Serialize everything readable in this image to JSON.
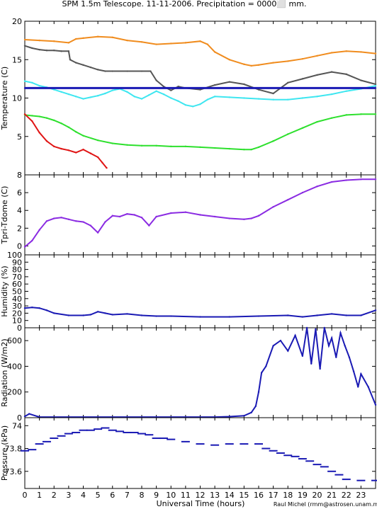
{
  "title": "SPM 1.5m Telescope. 11-11-2006. Precipitation = 0000⬜ mm.",
  "xlabel": "Universal Time (hours)",
  "credit": "Raul Michel (rmm@astrosen.unam.mx)",
  "colors": {
    "orange": "#f08c1e",
    "gray": "#555555",
    "cyan": "#3ee6f0",
    "blue": "#1a1ab4",
    "green": "#2de02d",
    "red": "#e01414",
    "purple": "#8a2be2"
  },
  "chart_data": [
    {
      "type": "line",
      "ylabel": "Temperature (C)",
      "xlim": [
        0,
        24
      ],
      "ylim": [
        0,
        20
      ],
      "xticks": [
        "0",
        "1",
        "2",
        "3",
        "4",
        "5",
        "6",
        "7",
        "8",
        "9",
        "10",
        "11",
        "12",
        "13",
        "14",
        "15",
        "16",
        "17",
        "18",
        "19",
        "20",
        "21",
        "22",
        "23"
      ],
      "yticks": [
        "5",
        "10",
        "15",
        "20"
      ],
      "grid": false,
      "series": [
        {
          "color": "orange",
          "x": [
            0,
            1,
            2,
            3,
            3.5,
            4,
            5,
            6,
            7,
            8,
            9,
            10,
            11,
            12,
            12.5,
            13,
            14,
            15,
            15.5,
            16,
            17,
            18,
            19,
            20,
            21,
            22,
            23,
            24
          ],
          "y": [
            17.6,
            17.5,
            17.4,
            17.2,
            17.7,
            17.8,
            18.0,
            17.9,
            17.5,
            17.3,
            17.0,
            17.1,
            17.2,
            17.4,
            17.0,
            16.0,
            15.0,
            14.4,
            14.2,
            14.3,
            14.6,
            14.8,
            15.1,
            15.5,
            15.9,
            16.1,
            16.0,
            15.8
          ]
        },
        {
          "color": "gray",
          "x": [
            0,
            0.5,
            1,
            1.5,
            2,
            2.5,
            3,
            3.1,
            3.5,
            4,
            4.5,
            5,
            5.5,
            6,
            7,
            8,
            8.6,
            9,
            9.5,
            10,
            10.5,
            11,
            12,
            13,
            14,
            15,
            16,
            17,
            17.5,
            18,
            19,
            20,
            21,
            22,
            23,
            24
          ],
          "y": [
            16.8,
            16.5,
            16.3,
            16.2,
            16.2,
            16.1,
            16.1,
            15.0,
            14.6,
            14.3,
            14.0,
            13.7,
            13.5,
            13.5,
            13.5,
            13.5,
            13.5,
            12.3,
            11.5,
            11.0,
            11.5,
            11.3,
            11.1,
            11.7,
            12.1,
            11.8,
            11.1,
            10.6,
            11.3,
            12.0,
            12.5,
            13.0,
            13.4,
            13.1,
            12.3,
            11.8
          ]
        },
        {
          "color": "cyan",
          "x": [
            0,
            0.5,
            1,
            1.5,
            2,
            2.5,
            3,
            3.5,
            4,
            4.5,
            5,
            5.5,
            6,
            6.5,
            7,
            7.5,
            8,
            8.5,
            9,
            9.5,
            10,
            10.5,
            11,
            11.5,
            12,
            12.5,
            13,
            14,
            15,
            16,
            17,
            18,
            19,
            20,
            21,
            22,
            23,
            24
          ],
          "y": [
            12.2,
            12.0,
            11.6,
            11.4,
            11.1,
            10.8,
            10.5,
            10.2,
            9.9,
            10.1,
            10.3,
            10.6,
            11.0,
            11.2,
            10.8,
            10.2,
            9.9,
            10.4,
            10.9,
            10.5,
            10.0,
            9.6,
            9.1,
            8.9,
            9.2,
            9.8,
            10.2,
            10.1,
            10.0,
            9.9,
            9.8,
            9.8,
            10.0,
            10.2,
            10.5,
            10.9,
            11.2,
            11.6
          ]
        },
        {
          "color": "blue",
          "x": [
            0,
            24
          ],
          "y": [
            11.3,
            11.3
          ]
        },
        {
          "color": "green",
          "x": [
            0,
            0.5,
            1,
            1.5,
            2,
            2.5,
            3,
            3.5,
            4,
            5,
            6,
            7,
            8,
            9,
            10,
            11,
            12,
            13,
            14,
            15,
            15.5,
            16,
            17,
            18,
            19,
            20,
            21,
            22,
            23,
            24
          ],
          "y": [
            7.8,
            7.7,
            7.6,
            7.4,
            7.1,
            6.7,
            6.2,
            5.6,
            5.1,
            4.5,
            4.1,
            3.9,
            3.8,
            3.8,
            3.7,
            3.7,
            3.6,
            3.5,
            3.4,
            3.3,
            3.3,
            3.6,
            4.4,
            5.3,
            6.1,
            6.9,
            7.4,
            7.8,
            7.9,
            7.9
          ]
        },
        {
          "color": "red",
          "x": [
            0,
            0.5,
            1,
            1.5,
            2,
            2.5,
            3,
            3.5,
            4,
            4.5,
            5,
            5.3,
            5.6
          ],
          "y": [
            7.9,
            7.0,
            5.5,
            4.4,
            3.7,
            3.4,
            3.2,
            2.9,
            3.3,
            2.8,
            2.3,
            1.6,
            0.9
          ]
        }
      ]
    },
    {
      "type": "line",
      "ylabel": "Tpri-Tdome (C)",
      "xlim": [
        0,
        24
      ],
      "ylim": [
        -1,
        8
      ],
      "yticks": [
        "0",
        "2",
        "4",
        "6",
        "8"
      ],
      "grid": false,
      "series": [
        {
          "color": "purple",
          "x": [
            0,
            0.5,
            1,
            1.5,
            2,
            2.5,
            3,
            3.5,
            4,
            4.5,
            5,
            5.5,
            6,
            6.5,
            7,
            7.5,
            8,
            8.5,
            9,
            10,
            11,
            12,
            13,
            14,
            15,
            15.5,
            16,
            17,
            18,
            19,
            20,
            21,
            22,
            23,
            24
          ],
          "y": [
            -0.1,
            0.6,
            1.8,
            2.8,
            3.1,
            3.2,
            3.0,
            2.8,
            2.7,
            2.3,
            1.5,
            2.7,
            3.4,
            3.3,
            3.6,
            3.5,
            3.2,
            2.3,
            3.3,
            3.7,
            3.8,
            3.5,
            3.3,
            3.1,
            3.0,
            3.1,
            3.4,
            4.4,
            5.2,
            6.0,
            6.7,
            7.2,
            7.4,
            7.5,
            7.5
          ]
        }
      ]
    },
    {
      "type": "line",
      "ylabel": "Humidity (%)",
      "xlim": [
        0,
        24
      ],
      "ylim": [
        0,
        100
      ],
      "yticks": [
        "0",
        "10",
        "20",
        "30",
        "40",
        "50",
        "60",
        "70",
        "80",
        "90",
        "100"
      ],
      "grid": false,
      "series": [
        {
          "color": "blue",
          "x": [
            0,
            0.5,
            1,
            1.5,
            2,
            3,
            4,
            4.5,
            5,
            5.5,
            6,
            7,
            8,
            9,
            10,
            12,
            14,
            16,
            18,
            19,
            20,
            21,
            22,
            23,
            24
          ],
          "y": [
            27,
            28,
            27,
            24,
            20,
            17,
            17,
            18,
            22,
            20,
            18,
            19,
            17,
            16,
            16,
            15,
            15,
            16,
            17,
            15,
            17,
            19,
            17,
            17,
            24
          ]
        }
      ]
    },
    {
      "type": "line",
      "ylabel": "Radiation (W/m2)",
      "xlim": [
        0,
        24
      ],
      "ylim": [
        0,
        700
      ],
      "yticks": [
        "0",
        "200",
        "400",
        "600"
      ],
      "grid": false,
      "series": [
        {
          "color": "blue",
          "x": [
            0,
            0.3,
            1,
            3,
            5,
            7,
            9,
            11,
            13,
            14,
            15,
            15.5,
            15.8,
            16,
            16.2,
            16.5,
            17,
            17.5,
            18,
            18.5,
            19,
            19.3,
            19.6,
            19.9,
            20.2,
            20.5,
            20.8,
            21,
            21.3,
            21.6,
            21.9,
            22.2,
            22.5,
            22.8,
            23,
            23.5,
            24
          ],
          "y": [
            10,
            30,
            5,
            5,
            5,
            5,
            5,
            5,
            5,
            8,
            15,
            40,
            90,
            200,
            350,
            400,
            560,
            600,
            520,
            640,
            480,
            700,
            420,
            690,
            380,
            700,
            560,
            620,
            470,
            660,
            560,
            470,
            360,
            240,
            340,
            240,
            100
          ]
        }
      ]
    },
    {
      "type": "scatter",
      "ylabel": "Pressure (kPa)",
      "xlim": [
        0,
        24
      ],
      "ylim": [
        73.45,
        74.07
      ],
      "yticks": [
        "73.6",
        "73.8",
        "74"
      ],
      "grid": false,
      "series": [
        {
          "color": "blue",
          "x": [
            0,
            0.5,
            1,
            1.5,
            2,
            2.5,
            3,
            3.5,
            4,
            4.5,
            5,
            5.5,
            6,
            6.5,
            7,
            7.5,
            8,
            8.5,
            9,
            9.5,
            10,
            11,
            12,
            13,
            14,
            15,
            16,
            16.5,
            17,
            17.5,
            18,
            18.5,
            19,
            19.5,
            20,
            20.5,
            21,
            21.5,
            22,
            23,
            24
          ],
          "y": [
            73.78,
            73.79,
            73.84,
            73.86,
            73.89,
            73.91,
            73.93,
            73.94,
            73.96,
            73.96,
            73.97,
            73.98,
            73.96,
            73.95,
            73.94,
            73.94,
            73.93,
            73.92,
            73.89,
            73.89,
            73.88,
            73.86,
            73.84,
            73.83,
            73.84,
            73.84,
            73.84,
            73.8,
            73.78,
            73.76,
            73.74,
            73.73,
            73.71,
            73.69,
            73.66,
            73.64,
            73.6,
            73.57,
            73.53,
            73.52,
            73.52
          ]
        }
      ]
    }
  ]
}
